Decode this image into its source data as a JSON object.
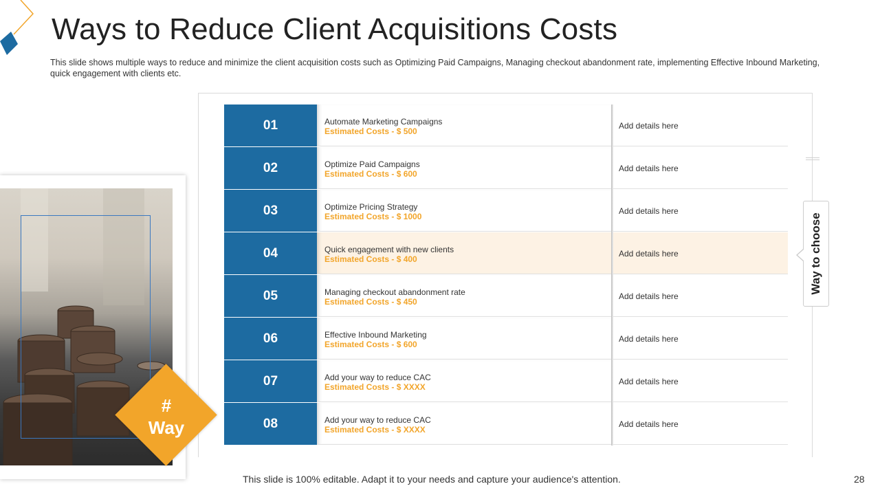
{
  "title": "Ways to Reduce Client Acquisitions Costs",
  "subtitle": "This slide shows multiple ways to reduce and minimize  the client acquisition costs such as Optimizing Paid Campaigns, Managing checkout abandonment rate, implementing Effective Inbound Marketing, quick engagement with clients etc.",
  "badge": {
    "line1": "#",
    "line2": "Way"
  },
  "callout": "Way to choose",
  "rows": [
    {
      "num": "01",
      "label": "Automate Marketing Campaigns",
      "cost": "Estimated Costs  - $ 500",
      "details": "Add details here"
    },
    {
      "num": "02",
      "label": "Optimize Paid Campaigns",
      "cost": "Estimated Costs  - $ 600",
      "details": "Add details here"
    },
    {
      "num": "03",
      "label": "Optimize Pricing Strategy",
      "cost": "Estimated Costs  - $ 1000",
      "details": "Add details here"
    },
    {
      "num": "04",
      "label": "Quick engagement with new clients",
      "cost": "Estimated Costs  - $ 400",
      "details": "Add details here"
    },
    {
      "num": "05",
      "label": "Managing checkout abandonment rate",
      "cost": "Estimated Costs  - $ 450",
      "details": "Add details here"
    },
    {
      "num": "06",
      "label": "Effective Inbound Marketing",
      "cost": "Estimated Costs  - $ 600",
      "details": "Add details here"
    },
    {
      "num": "07",
      "label": "Add your way to reduce CAC",
      "cost": "Estimated Costs  - $ XXXX",
      "details": "Add details here"
    },
    {
      "num": "08",
      "label": "Add your way to reduce CAC",
      "cost": "Estimated Costs  - $ XXXX",
      "details": "Add details here"
    }
  ],
  "footer": "This slide is 100% editable. Adapt it to your needs and capture your audience's attention.",
  "page_number": "28",
  "colors": {
    "row_number_bg": "#1d6ba1",
    "accent_orange": "#f2a52a",
    "highlight_row_bg": "#fdf2e4"
  }
}
